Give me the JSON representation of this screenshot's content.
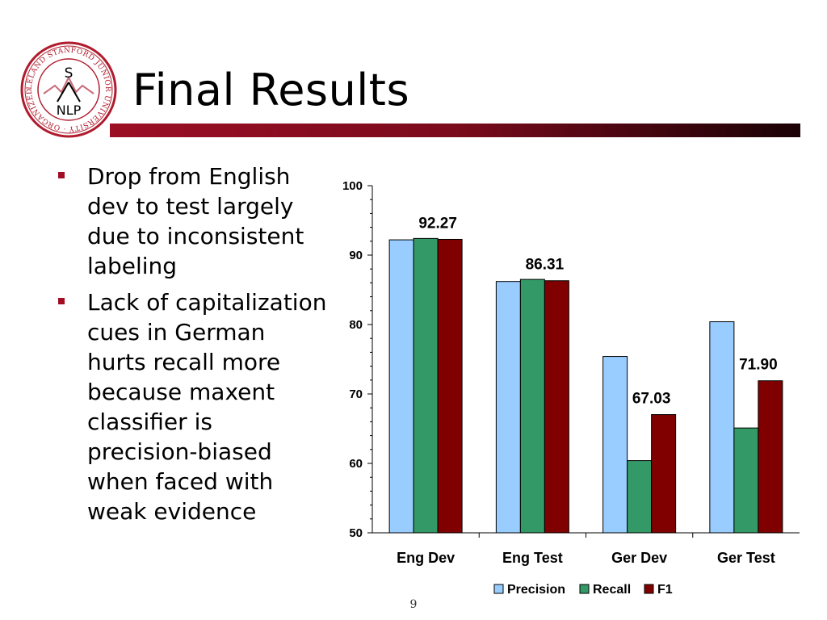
{
  "slide": {
    "title": "Final Results",
    "page_number": "9",
    "bullets": [
      "Drop from English dev to test largely due to inconsistent labeling",
      "Lack of capitalization cues in German hurts recall more because maxent classifier is precision-biased when faced with weak evidence"
    ],
    "logo": {
      "ring_text": "LELAND STANFORD JUNIOR UNIVERSITY · ORGANIZED 1891",
      "letter": "S",
      "label": "NLP"
    }
  },
  "colors": {
    "accent": "#9c0f25",
    "precision": "#99ccff",
    "recall": "#339966",
    "f1": "#800000"
  },
  "chart_data": {
    "type": "bar",
    "categories": [
      "Eng Dev",
      "Eng Test",
      "Ger Dev",
      "Ger Test"
    ],
    "series": [
      {
        "name": "Precision",
        "values": [
          92.2,
          86.2,
          75.4,
          80.4
        ]
      },
      {
        "name": "Recall",
        "values": [
          92.4,
          86.5,
          60.4,
          65.1
        ]
      },
      {
        "name": "F1",
        "values": [
          92.27,
          86.31,
          67.03,
          71.9
        ]
      }
    ],
    "data_labels": [
      "92.27",
      "86.31",
      "67.03",
      "71.90"
    ],
    "y_ticks": [
      "50",
      "60",
      "70",
      "80",
      "90",
      "100"
    ],
    "ylim": [
      50,
      100
    ],
    "legend_position": "bottom",
    "grid": false
  }
}
